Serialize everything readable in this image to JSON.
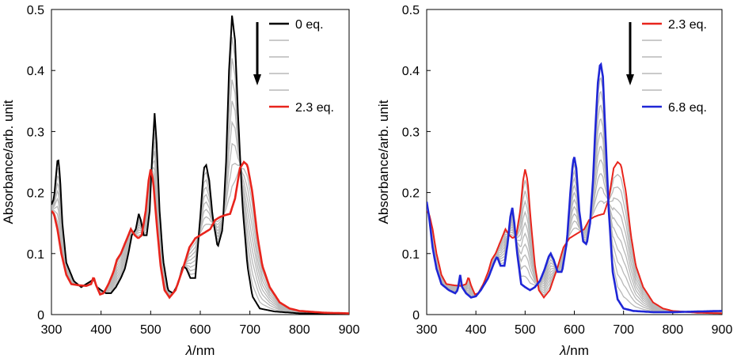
{
  "chart_data": [
    {
      "type": "line",
      "xlabel_italic": "λ",
      "xlabel_unit": "/nm",
      "ylabel": "Absorbance/arb. unit",
      "xlim": [
        300,
        900
      ],
      "ylim": [
        0,
        0.5
      ],
      "x_ticks": [
        "300",
        "400",
        "500",
        "600",
        "700",
        "800",
        "900"
      ],
      "y_ticks": [
        "0",
        "0.1",
        "0.2",
        "0.3",
        "0.4",
        "0.5"
      ],
      "grid": false,
      "legend_position": "top-right",
      "legend": [
        "0 eq.",
        "",
        "",
        "",
        "",
        "2.3 eq."
      ],
      "legend_arrow": "down",
      "colors": {
        "start": "#000000",
        "intermediate": "#b8b8b8",
        "end": "#e8241c"
      },
      "intermediate_count": 8,
      "series": [
        {
          "name": "0 eq.",
          "role": "start",
          "points": [
            [
              300,
              0.18
            ],
            [
              305,
              0.19
            ],
            [
              310,
              0.235
            ],
            [
              313,
              0.26
            ],
            [
              317,
              0.23
            ],
            [
              322,
              0.15
            ],
            [
              330,
              0.085
            ],
            [
              345,
              0.055
            ],
            [
              360,
              0.045
            ],
            [
              370,
              0.05
            ],
            [
              380,
              0.055
            ],
            [
              385,
              0.058
            ],
            [
              392,
              0.045
            ],
            [
              400,
              0.04
            ],
            [
              410,
              0.035
            ],
            [
              420,
              0.035
            ],
            [
              430,
              0.045
            ],
            [
              440,
              0.06
            ],
            [
              448,
              0.075
            ],
            [
              455,
              0.1
            ],
            [
              462,
              0.13
            ],
            [
              470,
              0.14
            ],
            [
              476,
              0.165
            ],
            [
              480,
              0.155
            ],
            [
              486,
              0.13
            ],
            [
              492,
              0.13
            ],
            [
              498,
              0.17
            ],
            [
              503,
              0.26
            ],
            [
              508,
              0.33
            ],
            [
              512,
              0.28
            ],
            [
              518,
              0.17
            ],
            [
              525,
              0.09
            ],
            [
              535,
              0.04
            ],
            [
              545,
              0.035
            ],
            [
              555,
              0.05
            ],
            [
              565,
              0.08
            ],
            [
              572,
              0.075
            ],
            [
              580,
              0.06
            ],
            [
              590,
              0.06
            ],
            [
              600,
              0.16
            ],
            [
              607,
              0.24
            ],
            [
              612,
              0.245
            ],
            [
              618,
              0.22
            ],
            [
              625,
              0.16
            ],
            [
              635,
              0.11
            ],
            [
              645,
              0.14
            ],
            [
              652,
              0.25
            ],
            [
              658,
              0.4
            ],
            [
              664,
              0.49
            ],
            [
              670,
              0.45
            ],
            [
              676,
              0.33
            ],
            [
              685,
              0.18
            ],
            [
              695,
              0.08
            ],
            [
              705,
              0.03
            ],
            [
              720,
              0.01
            ],
            [
              750,
              0.005
            ],
            [
              800,
              0.002
            ],
            [
              900,
              0.001
            ]
          ]
        },
        {
          "name": "2.3 eq.",
          "role": "end",
          "points": [
            [
              300,
              0.17
            ],
            [
              305,
              0.165
            ],
            [
              312,
              0.14
            ],
            [
              320,
              0.1
            ],
            [
              330,
              0.065
            ],
            [
              340,
              0.05
            ],
            [
              355,
              0.048
            ],
            [
              370,
              0.047
            ],
            [
              380,
              0.05
            ],
            [
              385,
              0.062
            ],
            [
              390,
              0.048
            ],
            [
              398,
              0.033
            ],
            [
              405,
              0.035
            ],
            [
              415,
              0.05
            ],
            [
              425,
              0.07
            ],
            [
              432,
              0.09
            ],
            [
              440,
              0.1
            ],
            [
              450,
              0.12
            ],
            [
              460,
              0.14
            ],
            [
              468,
              0.13
            ],
            [
              475,
              0.125
            ],
            [
              482,
              0.13
            ],
            [
              490,
              0.17
            ],
            [
              496,
              0.22
            ],
            [
              500,
              0.238
            ],
            [
              505,
              0.22
            ],
            [
              512,
              0.15
            ],
            [
              520,
              0.08
            ],
            [
              528,
              0.04
            ],
            [
              538,
              0.028
            ],
            [
              550,
              0.04
            ],
            [
              565,
              0.075
            ],
            [
              578,
              0.11
            ],
            [
              590,
              0.125
            ],
            [
              600,
              0.13
            ],
            [
              610,
              0.135
            ],
            [
              620,
              0.14
            ],
            [
              630,
              0.155
            ],
            [
              640,
              0.16
            ],
            [
              650,
              0.163
            ],
            [
              660,
              0.165
            ],
            [
              670,
              0.19
            ],
            [
              680,
              0.24
            ],
            [
              688,
              0.25
            ],
            [
              695,
              0.245
            ],
            [
              705,
              0.2
            ],
            [
              715,
              0.13
            ],
            [
              725,
              0.08
            ],
            [
              740,
              0.045
            ],
            [
              760,
              0.02
            ],
            [
              780,
              0.01
            ],
            [
              800,
              0.006
            ],
            [
              850,
              0.003
            ],
            [
              900,
              0.002
            ]
          ]
        }
      ]
    },
    {
      "type": "line",
      "xlabel_italic": "λ",
      "xlabel_unit": "/nm",
      "ylabel": "Absorbance/arb. unit",
      "xlim": [
        300,
        900
      ],
      "ylim": [
        0,
        0.5
      ],
      "x_ticks": [
        "300",
        "400",
        "500",
        "600",
        "700",
        "800",
        "900"
      ],
      "y_ticks": [
        "0",
        "0.1",
        "0.2",
        "0.3",
        "0.4",
        "0.5"
      ],
      "grid": false,
      "legend_position": "top-right",
      "legend": [
        "2.3 eq.",
        "",
        "",
        "",
        "",
        "6.8 eq."
      ],
      "legend_arrow": "down",
      "colors": {
        "start": "#e8241c",
        "intermediate": "#b8b8b8",
        "end": "#1f26d6"
      },
      "intermediate_count": 10,
      "series": [
        {
          "name": "2.3 eq.",
          "role": "start",
          "points": [
            [
              300,
              0.17
            ],
            [
              305,
              0.165
            ],
            [
              312,
              0.14
            ],
            [
              320,
              0.1
            ],
            [
              330,
              0.065
            ],
            [
              340,
              0.05
            ],
            [
              355,
              0.048
            ],
            [
              370,
              0.047
            ],
            [
              380,
              0.05
            ],
            [
              385,
              0.062
            ],
            [
              390,
              0.048
            ],
            [
              398,
              0.033
            ],
            [
              405,
              0.035
            ],
            [
              415,
              0.05
            ],
            [
              425,
              0.07
            ],
            [
              432,
              0.09
            ],
            [
              440,
              0.1
            ],
            [
              450,
              0.12
            ],
            [
              460,
              0.14
            ],
            [
              468,
              0.13
            ],
            [
              475,
              0.125
            ],
            [
              482,
              0.13
            ],
            [
              490,
              0.17
            ],
            [
              496,
              0.22
            ],
            [
              500,
              0.238
            ],
            [
              505,
              0.22
            ],
            [
              512,
              0.15
            ],
            [
              520,
              0.08
            ],
            [
              528,
              0.04
            ],
            [
              538,
              0.028
            ],
            [
              550,
              0.04
            ],
            [
              565,
              0.075
            ],
            [
              578,
              0.11
            ],
            [
              590,
              0.125
            ],
            [
              600,
              0.13
            ],
            [
              610,
              0.135
            ],
            [
              620,
              0.14
            ],
            [
              630,
              0.155
            ],
            [
              640,
              0.16
            ],
            [
              650,
              0.163
            ],
            [
              660,
              0.165
            ],
            [
              670,
              0.19
            ],
            [
              680,
              0.24
            ],
            [
              688,
              0.25
            ],
            [
              695,
              0.245
            ],
            [
              705,
              0.2
            ],
            [
              715,
              0.13
            ],
            [
              725,
              0.08
            ],
            [
              740,
              0.045
            ],
            [
              760,
              0.02
            ],
            [
              780,
              0.01
            ],
            [
              800,
              0.006
            ],
            [
              850,
              0.003
            ],
            [
              900,
              0.002
            ]
          ]
        },
        {
          "name": "6.8 eq.",
          "role": "end",
          "points": [
            [
              300,
              0.185
            ],
            [
              305,
              0.16
            ],
            [
              312,
              0.11
            ],
            [
              320,
              0.075
            ],
            [
              330,
              0.05
            ],
            [
              345,
              0.04
            ],
            [
              358,
              0.035
            ],
            [
              363,
              0.04
            ],
            [
              368,
              0.065
            ],
            [
              372,
              0.045
            ],
            [
              380,
              0.035
            ],
            [
              390,
              0.028
            ],
            [
              400,
              0.03
            ],
            [
              410,
              0.04
            ],
            [
              425,
              0.06
            ],
            [
              437,
              0.085
            ],
            [
              443,
              0.095
            ],
            [
              450,
              0.08
            ],
            [
              458,
              0.08
            ],
            [
              465,
              0.12
            ],
            [
              470,
              0.16
            ],
            [
              474,
              0.175
            ],
            [
              478,
              0.15
            ],
            [
              484,
              0.1
            ],
            [
              492,
              0.05
            ],
            [
              500,
              0.045
            ],
            [
              510,
              0.04
            ],
            [
              520,
              0.045
            ],
            [
              530,
              0.055
            ],
            [
              540,
              0.075
            ],
            [
              548,
              0.095
            ],
            [
              552,
              0.1
            ],
            [
              558,
              0.09
            ],
            [
              566,
              0.07
            ],
            [
              575,
              0.07
            ],
            [
              585,
              0.12
            ],
            [
              592,
              0.2
            ],
            [
              597,
              0.25
            ],
            [
              600,
              0.258
            ],
            [
              604,
              0.24
            ],
            [
              610,
              0.17
            ],
            [
              618,
              0.12
            ],
            [
              625,
              0.115
            ],
            [
              632,
              0.15
            ],
            [
              638,
              0.22
            ],
            [
              643,
              0.31
            ],
            [
              648,
              0.38
            ],
            [
              653,
              0.415
            ],
            [
              658,
              0.39
            ],
            [
              663,
              0.3
            ],
            [
              670,
              0.17
            ],
            [
              678,
              0.07
            ],
            [
              688,
              0.025
            ],
            [
              700,
              0.01
            ],
            [
              720,
              0.006
            ],
            [
              760,
              0.004
            ],
            [
              800,
              0.004
            ],
            [
              850,
              0.005
            ],
            [
              900,
              0.006
            ]
          ]
        }
      ]
    }
  ]
}
